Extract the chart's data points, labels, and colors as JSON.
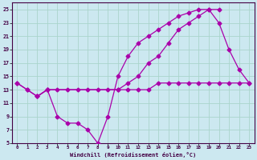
{
  "xlabel": "Windchill (Refroidissement éolien,°C)",
  "bg_color": "#cce8f0",
  "grid_color": "#aad4cc",
  "line_color": "#aa00aa",
  "spine_color": "#440044",
  "xlim": [
    -0.5,
    23.5
  ],
  "ylim": [
    5,
    26
  ],
  "xticks": [
    0,
    1,
    2,
    3,
    4,
    5,
    6,
    7,
    8,
    9,
    10,
    11,
    12,
    13,
    14,
    15,
    16,
    17,
    18,
    19,
    20,
    21,
    22,
    23
  ],
  "yticks": [
    5,
    7,
    9,
    11,
    13,
    15,
    17,
    19,
    21,
    23,
    25
  ],
  "line1_x": [
    0,
    1,
    2,
    3,
    4,
    5,
    6,
    7,
    8,
    9,
    10,
    11,
    12,
    13,
    14,
    15,
    16,
    17,
    18,
    19,
    20,
    21,
    22,
    23
  ],
  "line1_y": [
    14,
    13,
    12,
    13,
    13,
    13,
    13,
    13,
    13,
    13,
    13,
    13,
    13,
    13,
    14,
    14,
    14,
    14,
    14,
    14,
    14,
    14,
    14,
    14
  ],
  "line2_x": [
    0,
    1,
    2,
    3,
    4,
    5,
    6,
    7,
    8,
    9,
    10,
    11,
    12,
    13,
    14,
    15,
    16,
    17,
    18,
    19,
    20,
    21,
    22,
    23
  ],
  "line2_y": [
    14,
    13,
    12,
    13,
    9,
    8,
    8,
    7,
    5,
    9,
    15,
    18,
    20,
    21,
    22,
    23,
    24,
    24.5,
    25,
    25,
    23,
    19,
    16,
    14
  ],
  "line3_x": [
    2,
    3,
    10,
    11,
    12,
    13,
    14,
    15,
    16,
    17,
    18,
    19,
    20
  ],
  "line3_y": [
    12,
    13,
    13,
    14,
    15,
    17,
    18,
    20,
    22,
    23,
    24,
    25,
    25
  ]
}
